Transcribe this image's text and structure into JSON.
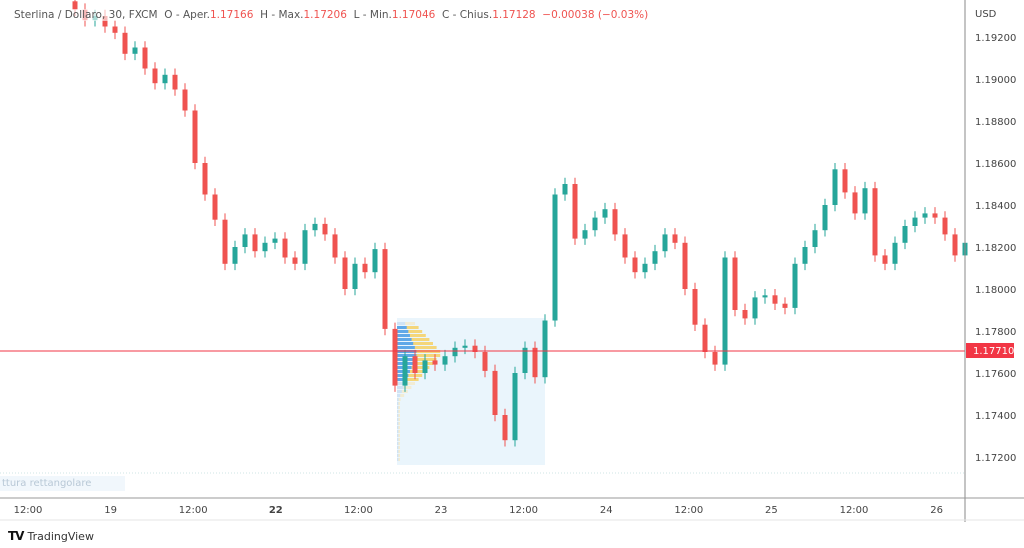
{
  "header": {
    "symbol": "Sterlina / Dollaro, 30, FXCM",
    "o_label": "O - Aper.",
    "o": "1.17166",
    "h_label": "H - Max.",
    "h": "1.17206",
    "l_label": "L - Min.",
    "l": "1.17046",
    "c_label": "C - Chius.",
    "c": "1.17128",
    "change": "−0.00038 (−0.03%)"
  },
  "drawing_tool_label": "ttura rettangolare",
  "footer": {
    "brand": "TradingView"
  },
  "colors": {
    "up": "#26a69a",
    "down": "#ef5350",
    "profile_box": "#e8f4fb",
    "price_line": "#f23645"
  },
  "chart_data": {
    "type": "candlestick",
    "currency": "USD",
    "y_ticks": [
      "1.19200",
      "1.19000",
      "1.18800",
      "1.18600",
      "1.18400",
      "1.18200",
      "1.18000",
      "1.17800",
      "1.17600",
      "1.17400",
      "1.17200"
    ],
    "ylim": [
      1.1707,
      1.1945
    ],
    "x_ticks": [
      "12:00",
      "19",
      "12:00",
      "22",
      "12:00",
      "23",
      "12:00",
      "24",
      "12:00",
      "25",
      "12:00",
      "26"
    ],
    "current_price": "1.17710",
    "closes": [
      1.1933,
      1.1928,
      1.193,
      1.1925,
      1.1922,
      1.1912,
      1.1915,
      1.1905,
      1.1898,
      1.1902,
      1.1895,
      1.1885,
      1.186,
      1.1845,
      1.1833,
      1.1812,
      1.182,
      1.1826,
      1.1818,
      1.1822,
      1.1824,
      1.1815,
      1.1812,
      1.1828,
      1.1831,
      1.1826,
      1.1815,
      1.18,
      1.1812,
      1.1808,
      1.1819,
      1.1781,
      1.1754,
      1.1768,
      1.176,
      1.1766,
      1.1764,
      1.1768,
      1.1772,
      1.1773,
      1.177,
      1.1761,
      1.174,
      1.1728,
      1.176,
      1.1772,
      1.1758,
      1.1785,
      1.1845,
      1.185,
      1.1824,
      1.1828,
      1.1834,
      1.1838,
      1.1826,
      1.1815,
      1.1808,
      1.1812,
      1.1818,
      1.1826,
      1.1822,
      1.18,
      1.1783,
      1.177,
      1.1764,
      1.1815,
      1.179,
      1.1786,
      1.1796,
      1.1797,
      1.1793,
      1.1791,
      1.1812,
      1.182,
      1.1828,
      1.184,
      1.1857,
      1.1846,
      1.1836,
      1.1848,
      1.1816,
      1.1812,
      1.1822,
      1.183,
      1.1834,
      1.1836,
      1.1834,
      1.1826,
      1.1816,
      1.1822
    ],
    "volume_profile_range": [
      1.17162,
      1.17862
    ]
  }
}
